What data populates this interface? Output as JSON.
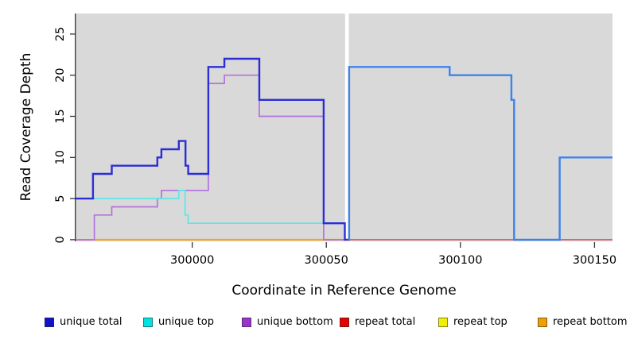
{
  "chart_data": {
    "type": "line",
    "subtype": "step-after-coverage-plot",
    "title": "",
    "xlabel": "Coordinate in Reference Genome",
    "ylabel": "Read Coverage Depth",
    "x_ticks": [
      300000,
      300050,
      300100,
      300150
    ],
    "y_ticks": [
      0,
      5,
      10,
      15,
      20,
      25
    ],
    "x_range": [
      299956.5,
      300156.7
    ],
    "y_range": [
      -0.2,
      27.5
    ],
    "grid": "off",
    "panel_color": "#d9d9d9",
    "axis_color": "#333333",
    "gap": {
      "from": 300057.0,
      "to": 300058.4,
      "color": "#ffffff"
    },
    "series": [
      {
        "name": "repeat-total",
        "legend": "repeat total",
        "color": "#e04a66",
        "width": 1.5,
        "points": [
          [
            299963.8,
            0
          ],
          [
            300156.7,
            0
          ]
        ]
      },
      {
        "name": "repeat-top",
        "legend": "repeat top",
        "color": "#f0f000",
        "width": 1.5,
        "points": [
          [
            299963.8,
            0
          ],
          [
            300057,
            0
          ]
        ]
      },
      {
        "name": "repeat-bottom",
        "legend": "repeat bottom",
        "color": "#f6a41f",
        "width": 2,
        "points": [
          [
            299963.8,
            0
          ],
          [
            300057,
            0
          ]
        ]
      },
      {
        "name": "unique-bottom",
        "legend": "unique bottom",
        "color": "#b373dc",
        "width": 1.7,
        "points": [
          [
            299956.5,
            0
          ],
          [
            299963.5,
            3
          ],
          [
            299970,
            4
          ],
          [
            299987,
            5
          ],
          [
            299988.5,
            6
          ],
          [
            300006,
            19
          ],
          [
            300012,
            20
          ],
          [
            300025,
            15
          ],
          [
            300049,
            0
          ],
          [
            300057,
            0
          ]
        ]
      },
      {
        "name": "repeat-unique-overlap-cap",
        "legend": null,
        "color": "#cf6cbe",
        "width": 1.8,
        "points": [
          [
            299956.5,
            0
          ],
          [
            299963.8,
            0
          ]
        ]
      },
      {
        "name": "unique-top",
        "legend": "unique top",
        "color": "#5fe6e6",
        "width": 1.7,
        "points": [
          [
            299956.5,
            5
          ],
          [
            299995,
            6
          ],
          [
            299997.3,
            3
          ],
          [
            299998.5,
            2
          ],
          [
            300056.9,
            2
          ]
        ]
      },
      {
        "name": "unique-total-left-segment",
        "legend": "unique total",
        "color": "#2d2dd8",
        "width": 2.4,
        "points": [
          [
            299956.5,
            5
          ],
          [
            299963,
            8
          ],
          [
            299970,
            9
          ],
          [
            299987,
            10
          ],
          [
            299988.5,
            11
          ],
          [
            299995,
            12
          ],
          [
            299997.5,
            9
          ],
          [
            299998.5,
            8
          ],
          [
            300006,
            21
          ],
          [
            300012,
            22
          ],
          [
            300025,
            17
          ],
          [
            300049,
            2
          ],
          [
            300056.9,
            0
          ],
          [
            300058.4,
            0
          ]
        ]
      },
      {
        "name": "unique-total-right-segment",
        "legend": "unique total",
        "color": "#3f82ea",
        "width": 2.4,
        "points": [
          [
            300058.4,
            0
          ],
          [
            300058.5,
            21
          ],
          [
            300096,
            20
          ],
          [
            300119,
            17
          ],
          [
            300120,
            0
          ],
          [
            300137,
            10
          ],
          [
            300156.7,
            10
          ]
        ]
      }
    ]
  },
  "legend": {
    "items": [
      {
        "label": "unique total",
        "color": "#1212cc"
      },
      {
        "label": "unique top",
        "color": "#00e2e2"
      },
      {
        "label": "unique bottom",
        "color": "#9a33cc"
      },
      {
        "label": "repeat total",
        "color": "#e60000"
      },
      {
        "label": "repeat top",
        "color": "#f0f000"
      },
      {
        "label": "repeat bottom",
        "color": "#f0a000"
      }
    ]
  }
}
